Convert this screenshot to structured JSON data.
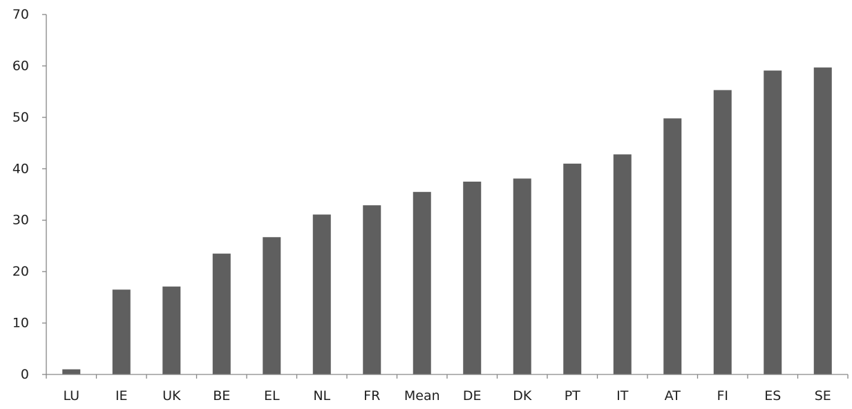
{
  "chart_data": {
    "type": "bar",
    "title": "",
    "xlabel": "",
    "ylabel": "",
    "categories": [
      "LU",
      "IE",
      "UK",
      "BE",
      "EL",
      "NL",
      "FR",
      "Mean",
      "DE",
      "DK",
      "PT",
      "IT",
      "AT",
      "FI",
      "ES",
      "SE"
    ],
    "values": [
      1.0,
      16.5,
      17.1,
      23.5,
      26.7,
      31.1,
      32.9,
      35.5,
      37.5,
      38.1,
      41.0,
      42.8,
      49.8,
      55.3,
      59.1,
      59.7
    ],
    "ylim": [
      0,
      70
    ],
    "yticks": [
      0,
      10,
      20,
      30,
      40,
      50,
      60,
      70
    ],
    "ytick_labels": [
      "0",
      "10",
      "20",
      "30",
      "40",
      "50",
      "60",
      "70"
    ],
    "grid": false,
    "legend": "none",
    "colors": {
      "bar": "#5f5f5f",
      "axis": "#868686",
      "text": "#1f1f1f"
    }
  }
}
